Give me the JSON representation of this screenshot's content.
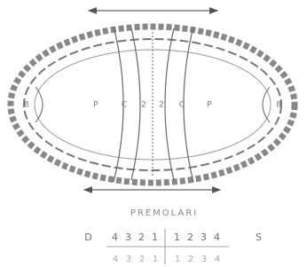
{
  "diagram": {
    "labels": [
      "8",
      "P",
      "C",
      "2",
      "2",
      "C",
      "P",
      "8"
    ]
  },
  "caption": "PREMOLARI",
  "rows": [
    {
      "left_side": "D",
      "left": [
        "4",
        "3",
        "2",
        "1"
      ],
      "right": [
        "1",
        "2",
        "3",
        "4"
      ],
      "right_side": "S"
    },
    {
      "left": [
        "4",
        "3",
        "2",
        "1"
      ],
      "right": [
        "1",
        "2",
        "3",
        "4"
      ]
    }
  ]
}
